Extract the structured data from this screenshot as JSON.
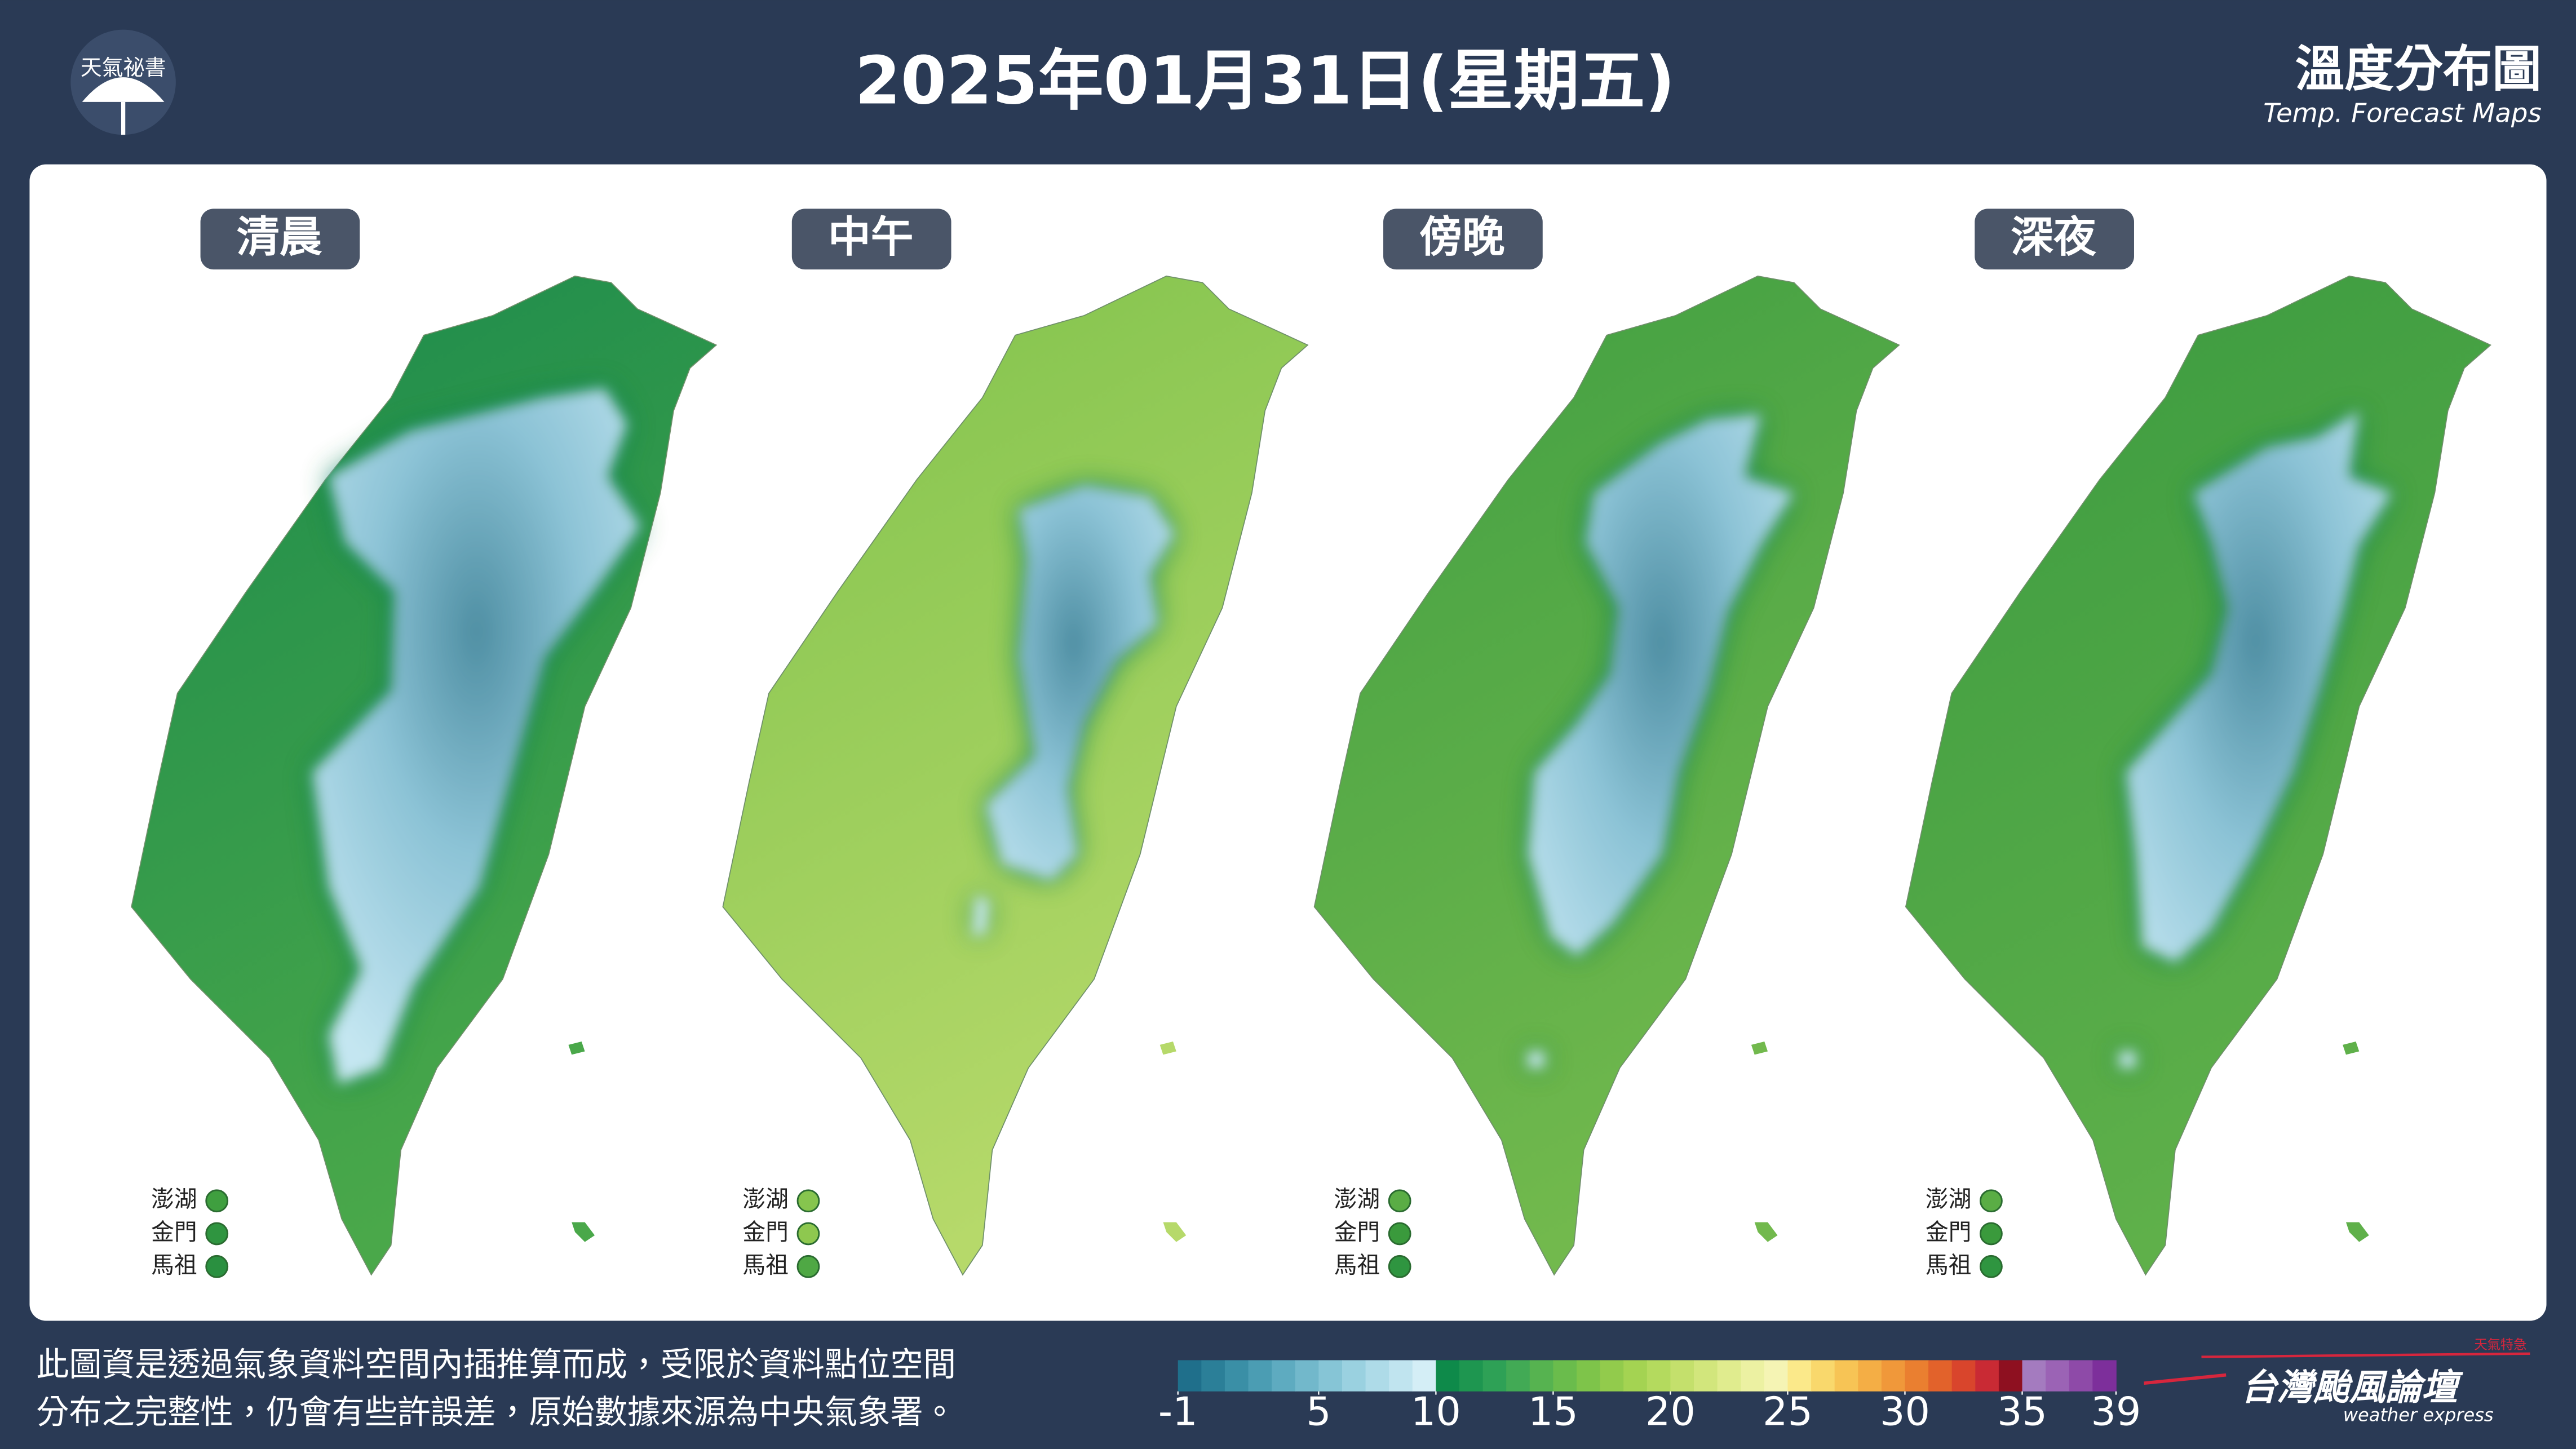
{
  "header": {
    "logo_text": "天氣祕書",
    "title": "2025年01月31日(星期五)",
    "product_title": "溫度分布圖",
    "product_subtitle": "Temp. Forecast Maps"
  },
  "panels": [
    {
      "label": "清晨",
      "islands": [
        {
          "name": "澎湖",
          "color": "#3f9f3f"
        },
        {
          "name": "金門",
          "color": "#2f9540"
        },
        {
          "name": "馬祖",
          "color": "#2a9040"
        }
      ]
    },
    {
      "label": "中午",
      "islands": [
        {
          "name": "澎湖",
          "color": "#86c54e"
        },
        {
          "name": "金門",
          "color": "#8ec84f"
        },
        {
          "name": "馬祖",
          "color": "#4fa844"
        }
      ]
    },
    {
      "label": "傍晚",
      "islands": [
        {
          "name": "澎湖",
          "color": "#5aad45"
        },
        {
          "name": "金門",
          "color": "#3a9a3c"
        },
        {
          "name": "馬祖",
          "color": "#2f9540"
        }
      ]
    },
    {
      "label": "深夜",
      "islands": [
        {
          "name": "澎湖",
          "color": "#5aad45"
        },
        {
          "name": "金門",
          "color": "#3a9a3c"
        },
        {
          "name": "馬祖",
          "color": "#2f9540"
        }
      ]
    }
  ],
  "disclaimer": [
    "此圖資是透過氣象資料空間內插推算而成，受限於資料點位空間",
    "分布之完整性，仍會有些許誤差，原始數據來源為中央氣象署。"
  ],
  "colorbar": {
    "range": [
      -1,
      39
    ],
    "ticks": [
      -1,
      5,
      10,
      15,
      20,
      25,
      30,
      35,
      39
    ],
    "colors": [
      "#1f6f8b",
      "#2b7f98",
      "#3a8fa6",
      "#4b9db3",
      "#5eabc0",
      "#72b8cb",
      "#86c5d6",
      "#9ad1e0",
      "#aedbe8",
      "#c0e4ef",
      "#d4eef6",
      "#0e8a4a",
      "#1e9650",
      "#2ea156",
      "#42aa55",
      "#56b350",
      "#6abc4c",
      "#7ec44a",
      "#92cb4c",
      "#a4d352",
      "#b4da5e",
      "#c4e06c",
      "#d2e67c",
      "#e0ec8e",
      "#ecf1a2",
      "#f5f4b4",
      "#fbe98a",
      "#f9d86c",
      "#f7c455",
      "#f4ae45",
      "#f0983a",
      "#ea7f30",
      "#e2622b",
      "#d9452c",
      "#c92a34",
      "#8e1020",
      "#a47bbf",
      "#9b63b5",
      "#8e4aa8",
      "#7d2f9b"
    ]
  },
  "brand": {
    "name": "台灣颱風論壇",
    "tagline": "weather express",
    "badge": "天氣特急"
  }
}
